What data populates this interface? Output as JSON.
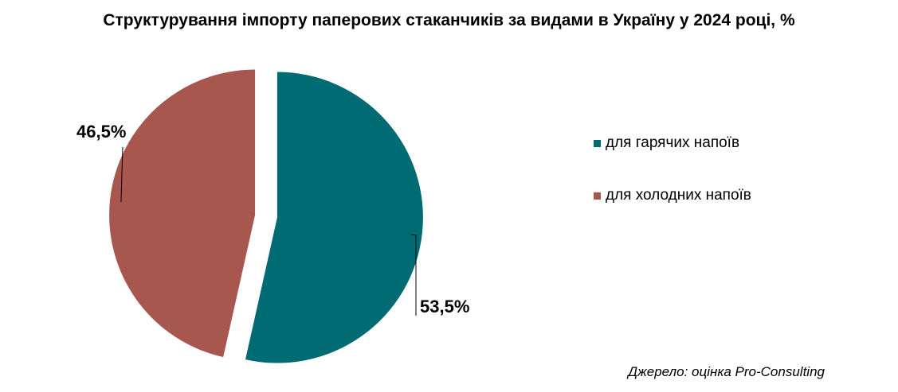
{
  "title": "Структурування імпорту паперових стаканчиків за видами в Україну у 2024 році, %",
  "source": "Джерело: оцінка Pro-Consulting",
  "colors": {
    "hot": "#006B73",
    "cold": "#A8574E"
  },
  "chart_data": {
    "type": "pie",
    "title": "Структурування імпорту паперових стаканчиків за видами в Україну у 2024 році, %",
    "unit": "%",
    "slices": [
      {
        "name": "для гарячих напоїв",
        "value": 53.5,
        "label": "53,5%",
        "color": "#006B73"
      },
      {
        "name": "для холодних напоїв",
        "value": 46.5,
        "label": "46,5%",
        "color": "#A8574E"
      }
    ],
    "legend_position": "right"
  }
}
